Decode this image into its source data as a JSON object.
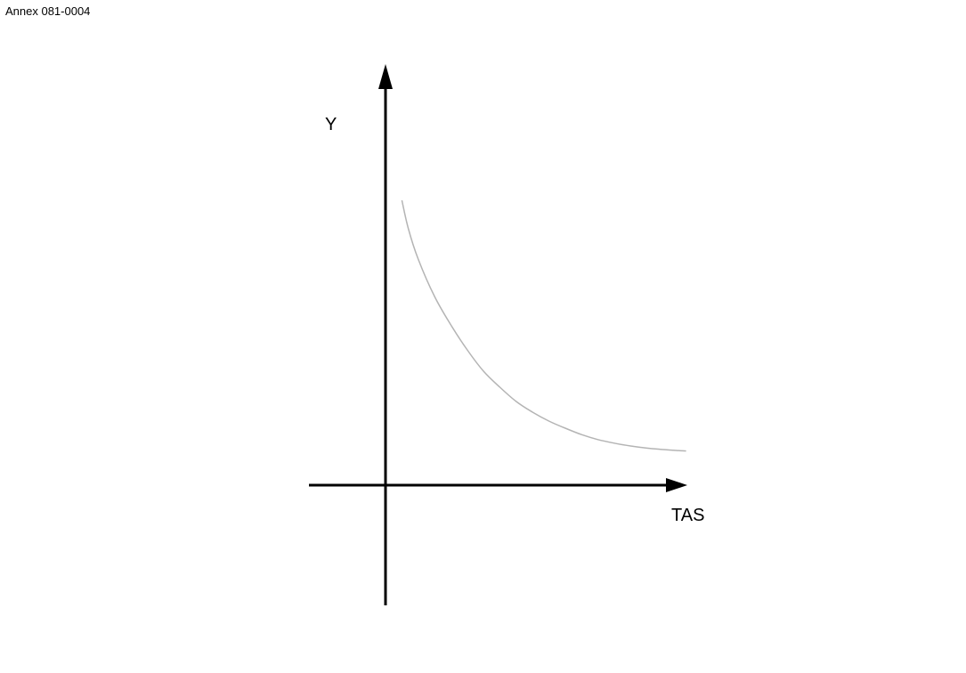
{
  "annex": "Annex 081-0004",
  "chart_data": {
    "type": "line",
    "title": "",
    "xlabel": "TAS",
    "ylabel": "Y",
    "grid": false,
    "legend": "none",
    "xlim": [
      0,
      10
    ],
    "ylim": [
      0,
      10
    ],
    "series": [
      {
        "name": "curve",
        "color": "#b4b4b4",
        "x": [
          0.5,
          0.7,
          1.0,
          1.5,
          2.0,
          2.5,
          3.0,
          3.5,
          4.0,
          4.5,
          5.0,
          5.5,
          6.0,
          6.5,
          7.0,
          7.5,
          8.0,
          8.5,
          9.0,
          9.2
        ],
        "y": [
          8.0,
          7.2,
          6.35,
          5.3,
          4.5,
          3.8,
          3.2,
          2.75,
          2.35,
          2.05,
          1.8,
          1.6,
          1.42,
          1.28,
          1.18,
          1.1,
          1.04,
          1.0,
          0.97,
          0.96
        ]
      }
    ],
    "axis_color": "#000000"
  }
}
